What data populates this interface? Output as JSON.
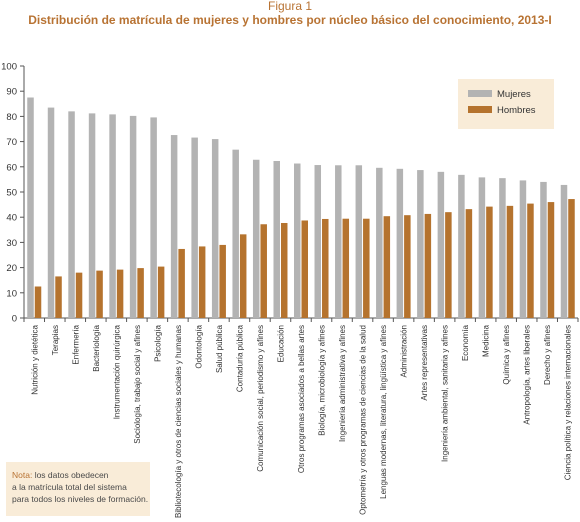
{
  "figure": {
    "label": "Figura 1",
    "title": "Distribución de matrícula de mujeres y hombres por núcleo básico del conocimiento, 2013-I"
  },
  "note": {
    "label": "Nota:",
    "text": " los datos obedecen\na la matrícula total del sistema\npara todos los niveles de formación."
  },
  "colors": {
    "mujeres": "#b3b3b3",
    "hombres": "#b5732e",
    "legend_bg": "#f9ecd8",
    "accent": "#b87333"
  },
  "chart_data": {
    "type": "bar",
    "title": "Distribución de matrícula de mujeres y hombres por núcleo básico del conocimiento, 2013-I",
    "ylim": [
      0,
      100
    ],
    "yticks": [
      0,
      10,
      20,
      30,
      40,
      50,
      60,
      70,
      80,
      90,
      100
    ],
    "legend_position": "top-right",
    "grid": false,
    "categories": [
      "Nutrición y dietética",
      "Terapias",
      "Enfermería",
      "Bacteriología",
      "Instrumentación quirúrgica",
      "Sociología, trabajo social y afines",
      "Psicología",
      "Bibliotecología y otros de ciencias sociales y humanas",
      "Odontología",
      "Salud pública",
      "Contaduría pública",
      "Comunicación social, periodismo y afines",
      "Educación",
      "Otros programas asociados a bellas artes",
      "Biología, microbiología y afines",
      "Ingeniería administrativa y afines",
      "Optometría y otros programas de ciencias de la salud",
      "Lenguas modernas, literatura, lingüística y afines",
      "Administración",
      "Artes representativas",
      "Ingeniería ambiental, sanitaria y afines",
      "Economía",
      "Medicina",
      "Química y afines",
      "Antropología, artes liberales",
      "Derecho y afines",
      "Ciencia política y relaciones internacionales"
    ],
    "series": [
      {
        "name": "Mujeres",
        "values": [
          87.5,
          83.5,
          82,
          81.2,
          80.8,
          80.2,
          79.6,
          72.6,
          71.6,
          71,
          66.8,
          62.8,
          62.3,
          61.3,
          60.7,
          60.6,
          60.6,
          59.6,
          59.2,
          58.7,
          58,
          56.8,
          55.8,
          55.5,
          54.6,
          54,
          52.8
        ]
      },
      {
        "name": "Hombres",
        "values": [
          12.5,
          16.5,
          18,
          18.8,
          19.2,
          19.8,
          20.4,
          27.4,
          28.4,
          29,
          33.2,
          37.2,
          37.7,
          38.7,
          39.3,
          39.4,
          39.4,
          40.4,
          40.8,
          41.3,
          42,
          43.2,
          44.2,
          44.5,
          45.4,
          46,
          47.2
        ]
      }
    ]
  }
}
